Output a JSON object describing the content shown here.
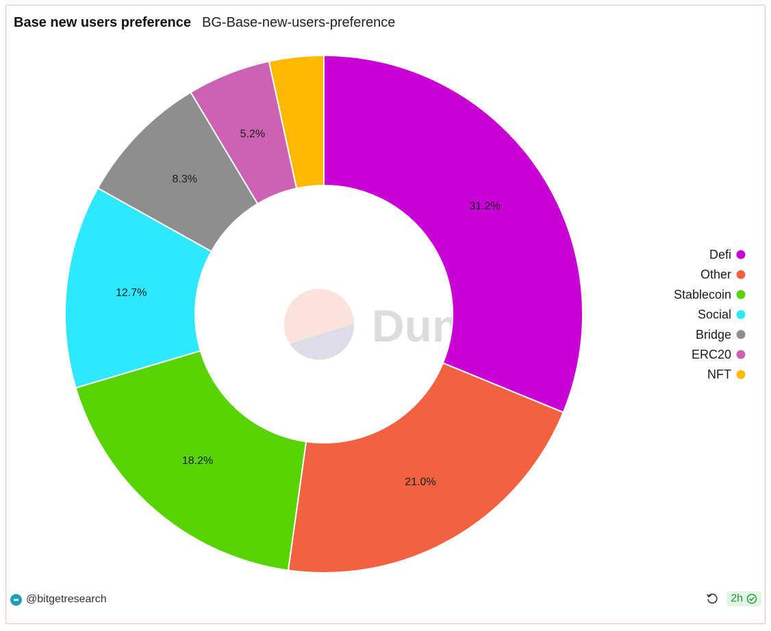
{
  "header": {
    "title": "Base new users preference",
    "subtitle": "BG-Base-new-users-preference"
  },
  "watermark": {
    "text": "Dune"
  },
  "footer": {
    "author": "@bitgetresearch",
    "age_badge": "2h"
  },
  "chart_data": {
    "type": "pie",
    "donut": true,
    "title": "Base new users preference",
    "legend_position": "right",
    "slices": [
      {
        "label": "Defi",
        "value": 31.2,
        "display": "31.2%",
        "color": "#c800d6"
      },
      {
        "label": "Other",
        "value": 21.0,
        "display": "21.0%",
        "color": "#f36240"
      },
      {
        "label": "Stablecoin",
        "value": 18.2,
        "display": "18.2%",
        "color": "#56d300"
      },
      {
        "label": "Social",
        "value": 12.7,
        "display": "12.7%",
        "color": "#2ee8ff"
      },
      {
        "label": "Bridge",
        "value": 8.3,
        "display": "8.3%",
        "color": "#8e8e8e"
      },
      {
        "label": "ERC20",
        "value": 5.2,
        "display": "5.2%",
        "color": "#cd62b2"
      },
      {
        "label": "NFT",
        "value": 3.4,
        "display": "",
        "color": "#ffb900"
      }
    ]
  }
}
